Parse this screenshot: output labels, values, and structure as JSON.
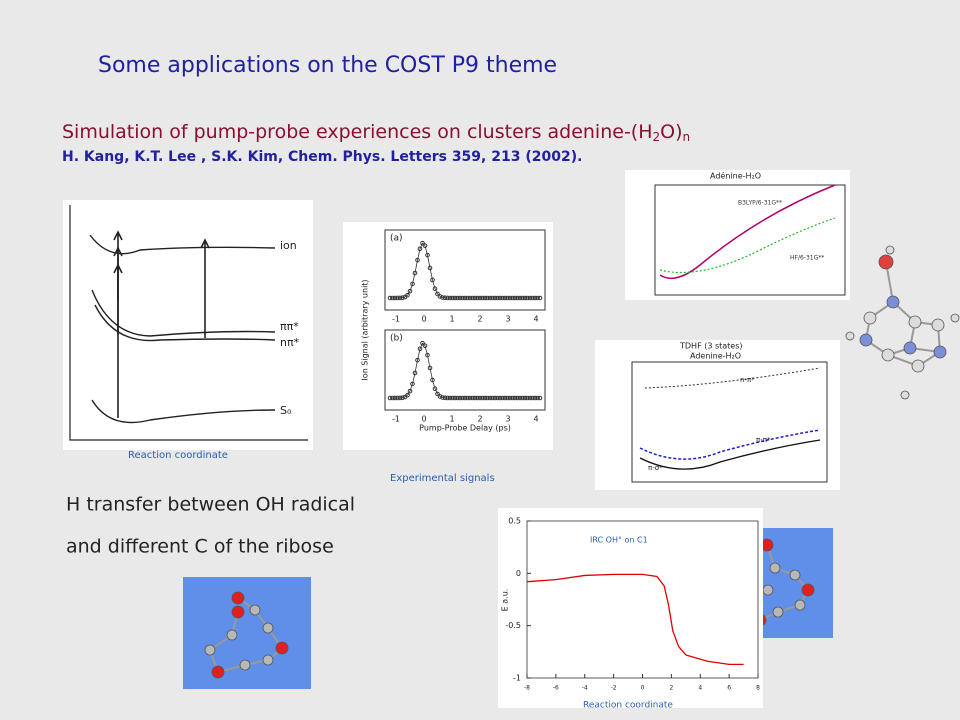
{
  "title": "Some applications on the COST P9 theme",
  "subtitle": {
    "parts": [
      "Simulation of pump-probe experiences on clusters adenine-(H",
      "2",
      "O)",
      "n"
    ]
  },
  "citation": "H. Kang, K.T. Lee , S.K. Kim, Chem. Phys. Letters 359, 213 (2002).",
  "energy_diagram": {
    "states": [
      "ion",
      "ππ*",
      "nπ*",
      "S₀"
    ],
    "caption": "Reaction coordinate"
  },
  "signals_figure": {
    "panels": [
      "(a)",
      "(b)"
    ],
    "y_label": "Ion Signal (arbitrary unit)",
    "x_label": "Pump-Probe Delay (ps)",
    "x_ticks": [
      "-1",
      "0",
      "1",
      "2",
      "3",
      "4"
    ],
    "caption": "Experimental signals"
  },
  "pes_plot": {
    "title": "Adénine-H₂O",
    "curves": [
      "B3LYP/6-31G**",
      "HF/6-31G**"
    ]
  },
  "tdhf_plot": {
    "title": "TDHF (3 states)",
    "subtitle": "Adenine-H₂O",
    "labels": [
      "n-π*",
      "π-π*",
      "π-σ*"
    ]
  },
  "h_transfer": {
    "lines": [
      "H transfer between OH radical",
      "and different C of the ribose"
    ]
  },
  "irc_chart": {
    "type": "line",
    "title": "IRC OH° on C1",
    "y_label": "E a.u.",
    "x_label": "Reaction coordinate",
    "x": [
      -8,
      -6,
      -4,
      -2,
      0,
      1,
      1.5,
      1.8,
      2.1,
      2.5,
      3,
      4.5,
      6,
      7
    ],
    "values": [
      -0.08,
      -0.06,
      -0.02,
      -0.01,
      -0.01,
      -0.03,
      -0.12,
      -0.3,
      -0.55,
      -0.7,
      -0.78,
      -0.84,
      -0.87,
      -0.87
    ],
    "color": "#e00000",
    "xlim": [
      -8,
      8
    ],
    "ylim": [
      -1,
      0.5
    ],
    "xticks": [
      -8,
      -6,
      -4,
      -2,
      0,
      2,
      4,
      6,
      8
    ],
    "yticks": [
      0.5,
      0,
      -0.5,
      -1
    ]
  }
}
